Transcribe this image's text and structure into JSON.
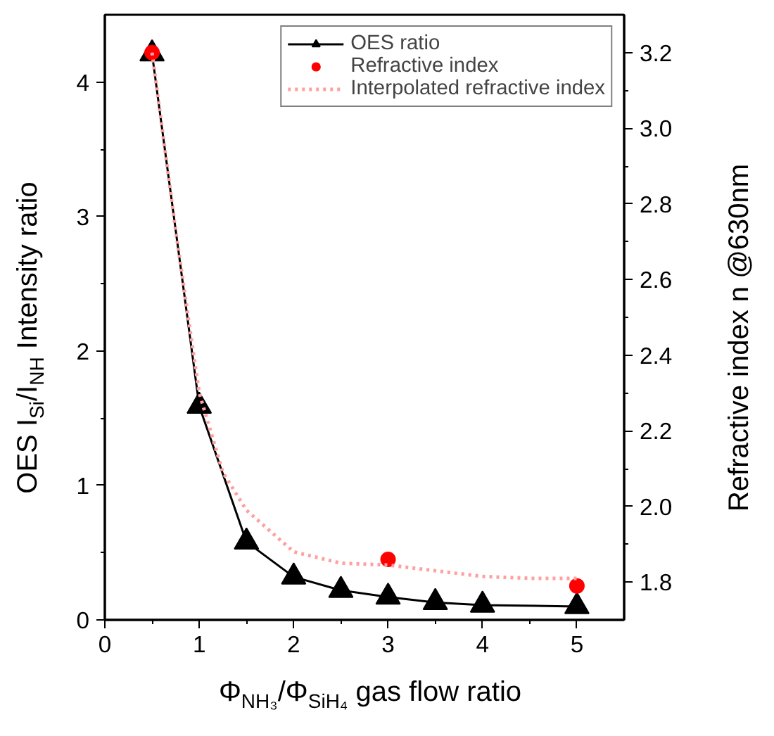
{
  "chart_data": {
    "type": "line",
    "xlabel": "Φ$_{NH₃}$/Φ$_{SiH₄}$ gas flow ratio",
    "ylabel": "OES I$_{Si}$/I$_{NH}$ Intensity ratio",
    "y2label": "Refractive index n  @630nm",
    "xlim": [
      0,
      5.5
    ],
    "xticks": [
      0,
      1,
      2,
      3,
      4,
      5
    ],
    "ylim": [
      0,
      4.5
    ],
    "yticks": [
      0,
      1,
      2,
      3,
      4
    ],
    "y2lim": [
      1.7,
      3.3
    ],
    "y2ticks": [
      {
        "value": 1.8,
        "label": "1.8"
      },
      {
        "value": 2.0,
        "label": "2.0"
      },
      {
        "value": 2.2,
        "label": "2.2"
      },
      {
        "value": 2.4,
        "label": "2.4"
      },
      {
        "value": 2.6,
        "label": "2.6"
      },
      {
        "value": 2.8,
        "label": "2.8"
      },
      {
        "value": 3.0,
        "label": "3.0"
      },
      {
        "value": 3.2,
        "label": "3.2"
      }
    ],
    "grid": false,
    "legend": "top right",
    "series": [
      {
        "name": "OES ratio",
        "type": "line",
        "color": "#000000",
        "marker": "triangle",
        "line_style": "solid",
        "x": [
          0.5,
          1,
          1.5,
          2,
          2.5,
          3,
          3.5,
          4,
          5
        ],
        "values": [
          4.21,
          1.59,
          0.58,
          0.32,
          0.22,
          0.17,
          0.13,
          0.11,
          0.1
        ]
      },
      {
        "name": "Refractive index",
        "type": "scatter",
        "axis": "y2",
        "color": "#ff0000",
        "marker": "circle",
        "x": [
          0.5,
          3,
          5
        ],
        "values": [
          3.2,
          1.86,
          1.79
        ]
      },
      {
        "name": "Interpolated refractive index",
        "type": "line",
        "axis": "y2",
        "color": "#ffa0a0",
        "marker": "none",
        "line_style": "dotted",
        "x": [
          0.5,
          0.75,
          1,
          1.25,
          1.5,
          2,
          2.5,
          3,
          3.5,
          4,
          4.5,
          5
        ],
        "values": [
          3.2,
          2.73,
          2.3,
          2.09,
          1.99,
          1.88,
          1.85,
          1.845,
          1.83,
          1.815,
          1.81,
          1.81
        ]
      }
    ]
  }
}
